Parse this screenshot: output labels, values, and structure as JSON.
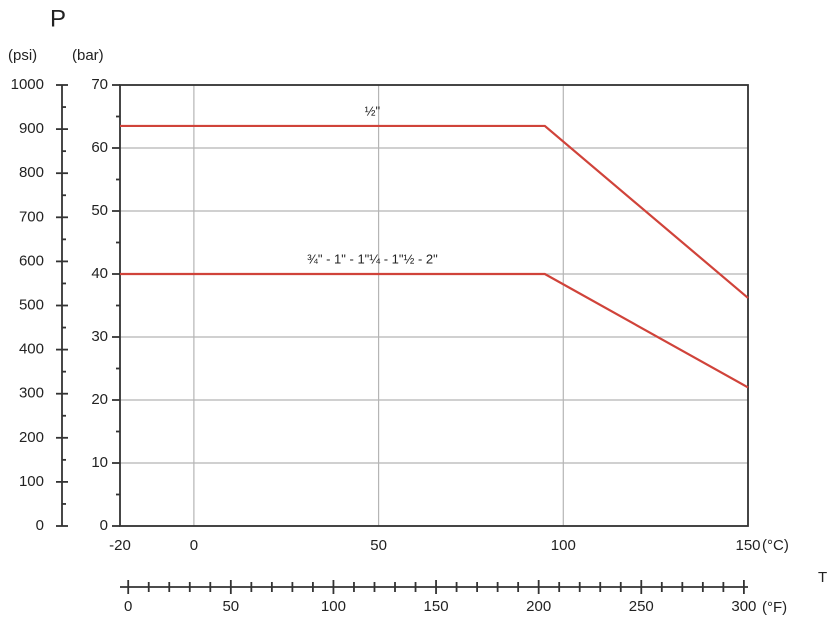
{
  "chart_data": {
    "type": "line",
    "title": "P",
    "y_label": "(bar)",
    "y2_label": "(psi)",
    "x_label": "T",
    "x_unit": "(°C)",
    "x2_unit": "(°F)",
    "xlim": [
      -20,
      150
    ],
    "xticks": [
      -20,
      0,
      50,
      100,
      150
    ],
    "ylim": [
      0,
      70
    ],
    "yticks": [
      0,
      10,
      20,
      30,
      40,
      50,
      60,
      70
    ],
    "y2lim": [
      0,
      1000
    ],
    "y2ticks": [
      0,
      100,
      200,
      300,
      400,
      500,
      600,
      700,
      800,
      900,
      1000
    ],
    "x2lim": [
      -4,
      302
    ],
    "x2ticks": [
      0,
      50,
      100,
      150,
      200,
      250,
      300
    ],
    "grid": true,
    "series": [
      {
        "name": "½\"",
        "color": "#d0433a",
        "x": [
          -20,
          95,
          150
        ],
        "values": [
          63.5,
          63.5,
          36.2
        ]
      },
      {
        "name": "¾\" - 1\" - 1\"¼ - 1\"½ - 2\"",
        "color": "#d0433a",
        "x": [
          -20,
          95,
          150
        ],
        "values": [
          40,
          40,
          22
        ]
      }
    ]
  }
}
